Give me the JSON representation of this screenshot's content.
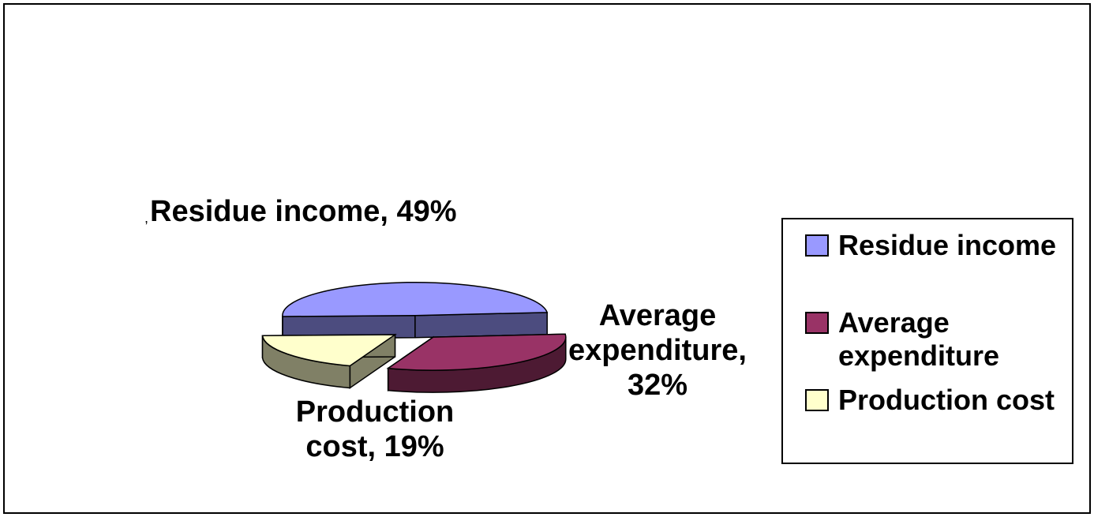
{
  "chart_data": {
    "type": "pie",
    "three_d": true,
    "exploded": true,
    "slices": [
      {
        "name": "Residue income",
        "value": 49,
        "label": "Residue income, 49%",
        "color": "#9999ff",
        "side_color": "#4c4c7f"
      },
      {
        "name": "Average expenditure",
        "value": 32,
        "label": "Average expenditure, 32%",
        "color": "#993366",
        "side_color": "#4d1a33"
      },
      {
        "name": "Production cost",
        "value": 19,
        "label": "Production cost, 19%",
        "color": "#ffffcc",
        "side_color": "#808066"
      }
    ],
    "legend": {
      "placement": "right",
      "items": [
        "Residue income",
        "Average expenditure",
        "Production cost"
      ]
    },
    "stray_mark": ","
  }
}
